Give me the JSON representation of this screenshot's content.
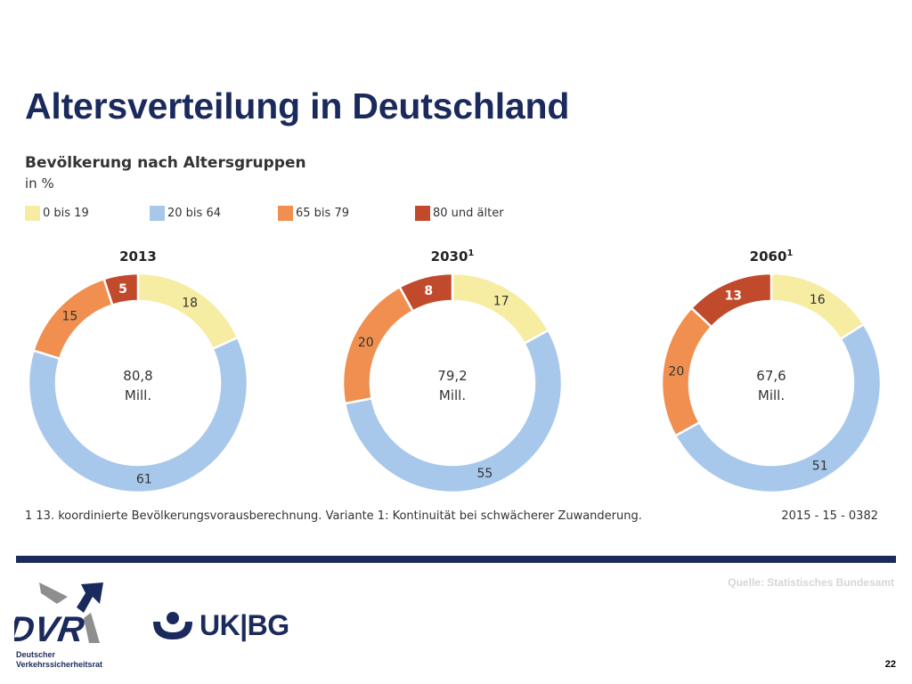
{
  "slide": {
    "title": "Altersverteilung in Deutschland",
    "page_number": "22",
    "source": "Quelle: Statistisches Bundesamt",
    "footnote": "1 13. koordinierte Bevölkerungsvorausberechnung. Variante 1: Kontinuität bei schwächerer Zuwanderung.",
    "code": "2015 - 15 - 0382"
  },
  "logos": {
    "dvr_caption_line1": "Deutscher",
    "dvr_caption_line2": "Verkehrssicherheitsrat",
    "ukbg_text": "UK|BG"
  },
  "chart_data": {
    "type": "pie",
    "title": "Bevölkerung nach Altersgruppen",
    "unit": "in %",
    "categories": [
      "0 bis 19",
      "20 bis 64",
      "65 bis 79",
      "80 und älter"
    ],
    "colors": [
      "#f6eca2",
      "#a8c8eb",
      "#f08f4f",
      "#c24a2c"
    ],
    "legend_position": "top",
    "charts": [
      {
        "year": "2013",
        "superscript": "",
        "values": [
          18,
          61,
          15,
          5
        ],
        "center_value": "80,8",
        "center_unit": "Mill."
      },
      {
        "year": "2030",
        "superscript": "1",
        "values": [
          17,
          55,
          20,
          8
        ],
        "center_value": "79,2",
        "center_unit": "Mill."
      },
      {
        "year": "2060",
        "superscript": "1",
        "values": [
          16,
          51,
          20,
          13
        ],
        "center_value": "67,6",
        "center_unit": "Mill."
      }
    ]
  }
}
